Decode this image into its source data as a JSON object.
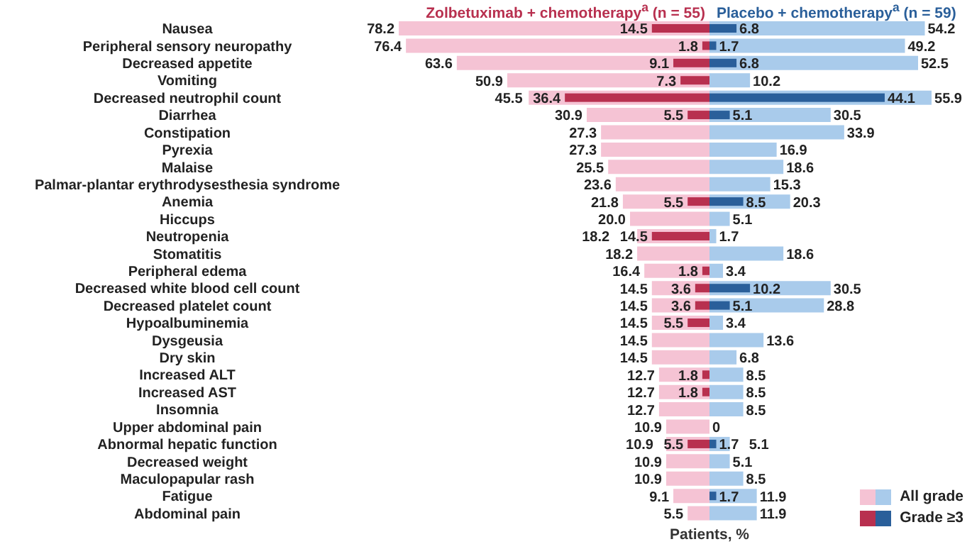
{
  "chart_data": [
    {
      "type": "bar",
      "orientation": "horizontal",
      "title": "Zolbetuximab + chemotherapy$^{a}$ (n = 55)",
      "tick_labels": "y",
      "legend": "bottom right",
      "categories": [
        "Nausea",
        "Peripheral sensory neuropathy",
        "Decreased appetite",
        "Vomiting",
        "Decreased neutrophil count",
        "Diarrhea",
        "Constipation",
        "Pyrexia",
        "Malaise",
        "Palmar-plantar erythrodysesthesia syndrome",
        "Anemia",
        "Hiccups",
        "Neutropenia",
        "Stomatitis",
        "Peripheral edema",
        "Decreased white blood cell count",
        "Decreased platelet count",
        "Hypoalbuminemia",
        "Dysgeusia",
        "Dry skin",
        "Increased ALT",
        "Increased AST",
        "Insomnia",
        "Upper abdominal pain",
        "Abnormal hepatic function",
        "Decreased weight",
        "Maculopapular rash",
        "Fatigue",
        "Abdominal pain"
      ],
      "series": [
        {
          "name": "All grade",
          "color": "#f5c3d4",
          "values": [
            78.2,
            76.4,
            63.6,
            50.9,
            45.5,
            30.9,
            27.3,
            27.3,
            25.5,
            23.6,
            21.8,
            20.0,
            18.2,
            18.2,
            16.4,
            14.5,
            14.5,
            14.5,
            14.5,
            14.5,
            12.7,
            12.7,
            12.7,
            10.9,
            10.9,
            10.9,
            10.9,
            9.1,
            5.5
          ],
          "value_labels": [
            "78.2",
            "76.4",
            "63.6",
            "50.9",
            "45.5",
            "30.9",
            "27.3",
            "27.3",
            "25.5",
            "23.6",
            "21.8",
            "20.0",
            "18.2",
            "18.2",
            "16.4",
            "14.5",
            "14.5",
            "14.5",
            "14.5",
            "14.5",
            "12.7",
            "12.7",
            "12.7",
            "10.9",
            "10.9",
            "10.9",
            "10.9",
            "9.1",
            "5.5"
          ]
        },
        {
          "name": "Grade ≥3",
          "color": "#b8304f",
          "values": [
            14.5,
            1.8,
            9.1,
            7.3,
            36.4,
            5.5,
            null,
            null,
            null,
            null,
            5.5,
            null,
            14.5,
            null,
            1.8,
            3.6,
            3.6,
            5.5,
            null,
            null,
            1.8,
            1.8,
            null,
            null,
            5.5,
            null,
            null,
            null,
            null
          ],
          "value_labels": [
            "14.5",
            "1.8",
            "9.1",
            "7.3",
            "36.4",
            "5.5",
            null,
            null,
            null,
            null,
            "5.5",
            null,
            "14.5",
            null,
            "1.8",
            "3.6",
            "3.6",
            "5.5",
            null,
            null,
            "1.8",
            "1.8",
            null,
            null,
            "5.5",
            null,
            null,
            null,
            null
          ]
        }
      ]
    },
    {
      "type": "bar",
      "orientation": "horizontal",
      "title": "Placebo + chemotherapy$^{a}$ (n = 59)",
      "xlabel": "Patients, %",
      "tick_labels": false,
      "legend": "bottom right",
      "categories": [
        null,
        null,
        null,
        null,
        null,
        null,
        null,
        null,
        null,
        null,
        null,
        null,
        null,
        null,
        null,
        null,
        null,
        null,
        null,
        null,
        null,
        null,
        null,
        null,
        null,
        null,
        null,
        null,
        null
      ],
      "series": [
        {
          "color": "#a9cbeb",
          "values": [
            54.2,
            49.2,
            52.5,
            10.2,
            55.9,
            30.5,
            33.9,
            16.9,
            18.6,
            15.3,
            20.3,
            5.1,
            1.7,
            18.6,
            3.4,
            30.5,
            28.8,
            3.4,
            13.6,
            6.8,
            8.5,
            8.5,
            8.5,
            0,
            5.1,
            5.1,
            8.5,
            11.9,
            11.9
          ],
          "value_labels": [
            "54.2",
            "49.2",
            "52.5",
            "10.2",
            "55.9",
            "30.5",
            "33.9",
            "16.9",
            "18.6",
            "15.3",
            "20.3",
            "5.1",
            "1.7",
            "18.6",
            "3.4",
            "30.5",
            "28.8",
            "3.4",
            "13.6",
            "6.8",
            "8.5",
            "8.5",
            "8.5",
            "0",
            "5.1",
            "5.1",
            "8.5",
            "11.9",
            "11.9"
          ]
        },
        {
          "color": "#2a5f9a",
          "values": [
            6.8,
            1.7,
            6.8,
            null,
            44.1,
            5.1,
            null,
            null,
            null,
            null,
            8.5,
            null,
            null,
            null,
            null,
            10.2,
            5.1,
            null,
            null,
            null,
            null,
            null,
            null,
            null,
            1.7,
            null,
            null,
            1.7,
            null
          ],
          "value_labels": [
            "6.8",
            "1.7",
            "6.8",
            null,
            "44.1",
            "5.1",
            null,
            null,
            null,
            null,
            "8.5",
            null,
            null,
            null,
            null,
            "10.2",
            "5.1",
            null,
            null,
            null,
            null,
            null,
            null,
            null,
            "1.7",
            null,
            null,
            "1.7",
            null
          ]
        }
      ]
    }
  ]
}
